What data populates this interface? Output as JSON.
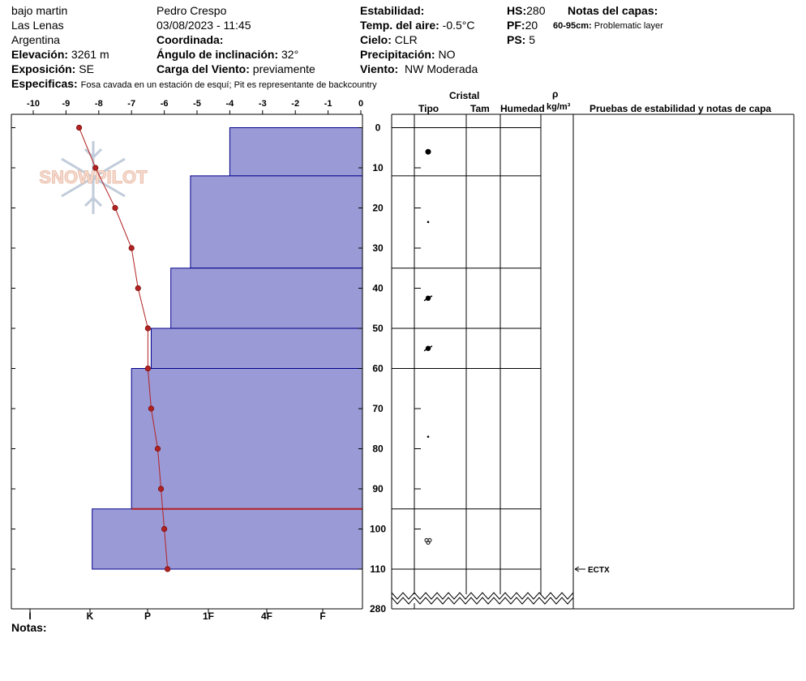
{
  "header": {
    "location": "bajo martin",
    "area": "Las Lenas",
    "country": "Argentina",
    "elevation_label": "Elevación:",
    "elevation": "3261 m",
    "aspect_label": "Exposición:",
    "aspect": "SE",
    "specifics_label": "Especificas:",
    "specifics": "Fosa cavada en un estación de esquí; Pit es representante de backcountry",
    "observer": "Pedro Crespo",
    "datetime": "03/08/2023 - 11:45",
    "coord_label": "Coordinada:",
    "slope_label": "Ángulo de inclinación:",
    "slope": "32°",
    "wind_load_label": "Carga del Viento:",
    "wind_load": "previamente",
    "stability_label": "Estabilidad:",
    "air_temp_label": "Temp. del aire:",
    "air_temp": "-0.5°C",
    "sky_label": "Cielo:",
    "sky": "CLR",
    "precip_label": "Precipitación:",
    "precip": "NO",
    "wind_label": "Viento:",
    "wind": "NW Moderada",
    "hs_label": "HS:",
    "hs": "280",
    "pf_label": "PF:",
    "pf": "20",
    "ps_label": "PS:",
    "ps": "5",
    "layer_notes_label": "Notas del capas:",
    "layer_note_depth": "60-95cm:",
    "layer_note_text": "Problematic layer"
  },
  "notes_label": "Notas:",
  "watermark": "SNOWPILOT",
  "table_headers": {
    "crystal": "Cristal",
    "type": "Tipo",
    "size": "Tam",
    "moisture": "Humedad",
    "rho": "ρ",
    "density_unit": "kg/m³",
    "tests": "Pruebas de estabilidad y notas de capa"
  },
  "colors": {
    "hardness_fill": "#9a9ad6",
    "hardness_stroke": "#00008b",
    "temp_line": "#b22222"
  },
  "chart_data": {
    "type": "snow-profile",
    "temperature_axis": {
      "ticks": [
        -10,
        -9,
        -8,
        -7,
        -6,
        -5,
        -4,
        -3,
        -2,
        -1,
        0
      ],
      "range": [
        -10.5,
        0
      ]
    },
    "depth_axis": {
      "ticks": [
        0,
        10,
        20,
        30,
        40,
        50,
        60,
        70,
        80,
        90,
        100,
        110
      ],
      "range": [
        -3,
        119
      ],
      "bottom_label": "280"
    },
    "hardness_axis": {
      "labels": [
        "I",
        "K",
        "P",
        "1F",
        "4F",
        "F"
      ]
    },
    "temperature_profile": [
      {
        "depth": 0,
        "temp": -8.6
      },
      {
        "depth": 10,
        "temp": -8.1
      },
      {
        "depth": 20,
        "temp": -7.5
      },
      {
        "depth": 30,
        "temp": -7.0
      },
      {
        "depth": 40,
        "temp": -6.8
      },
      {
        "depth": 50,
        "temp": -6.5
      },
      {
        "depth": 60,
        "temp": -6.5
      },
      {
        "depth": 70,
        "temp": -6.4
      },
      {
        "depth": 80,
        "temp": -6.2
      },
      {
        "depth": 90,
        "temp": -6.1
      },
      {
        "depth": 100,
        "temp": -6.0
      },
      {
        "depth": 110,
        "temp": -5.9
      }
    ],
    "layers": [
      {
        "top": 0,
        "bottom": 12,
        "hardness_temp_equiv": -4.0
      },
      {
        "top": 12,
        "bottom": 35,
        "hardness_temp_equiv": -5.2
      },
      {
        "top": 35,
        "bottom": 50,
        "hardness_temp_equiv": -5.8
      },
      {
        "top": 50,
        "bottom": 60,
        "hardness_temp_equiv": -6.4
      },
      {
        "top": 60,
        "bottom": 95,
        "hardness_temp_equiv": -7.0
      },
      {
        "top": 95,
        "bottom": 110,
        "hardness_temp_equiv": -8.2
      }
    ],
    "problem_layer_depth": 95,
    "crystals": [
      {
        "depth": 6,
        "symbol": "large-dot"
      },
      {
        "depth": 23.5,
        "symbol": "small-dot"
      },
      {
        "depth": 42.5,
        "symbol": "rounded-facet"
      },
      {
        "depth": 55,
        "symbol": "rounded-facet"
      },
      {
        "depth": 77,
        "symbol": "small-dot"
      },
      {
        "depth": 103,
        "symbol": "melt-form"
      }
    ],
    "tests": [
      {
        "depth": 110,
        "label": "ECTX"
      }
    ]
  }
}
